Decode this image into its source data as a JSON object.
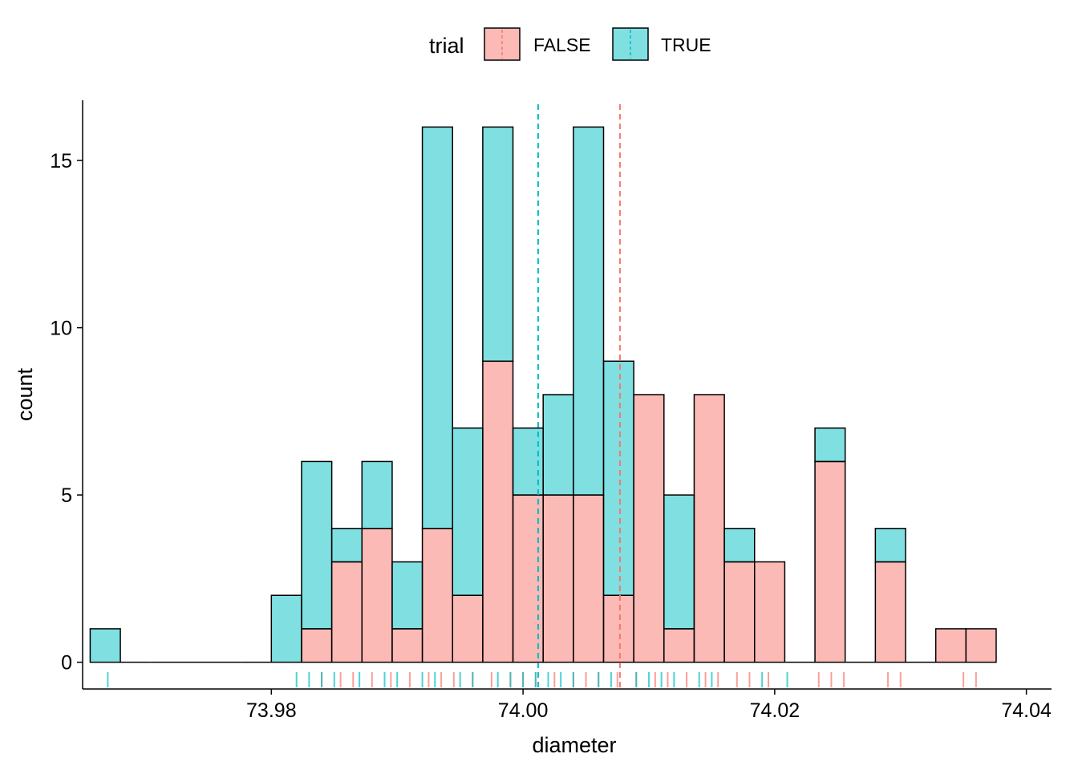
{
  "chart_data": {
    "type": "bar",
    "subtype": "overlaid-histogram-with-rug",
    "title": "",
    "xlabel": "diameter",
    "ylabel": "count",
    "xlim": [
      73.965,
      74.042
    ],
    "ylim": [
      -0.8,
      16.8
    ],
    "x_ticks": [
      73.98,
      74.0,
      74.02,
      74.04
    ],
    "x_tick_labels": [
      "73.98",
      "74.00",
      "74.02",
      "74.04"
    ],
    "y_ticks": [
      0,
      5,
      10,
      15
    ],
    "y_tick_labels": [
      "0",
      "5",
      "10",
      "15"
    ],
    "grid": false,
    "legend": {
      "title": "trial",
      "position": "top"
    },
    "bin_width": 0.0024,
    "bin_centers": [
      73.9668,
      73.9692,
      73.9716,
      73.974,
      73.9764,
      73.9788,
      73.9812,
      73.9836,
      73.986,
      73.9884,
      73.9908,
      73.9932,
      73.9956,
      73.998,
      74.0004,
      74.0028,
      74.0052,
      74.0076,
      74.01,
      74.0124,
      74.0148,
      74.0172,
      74.0196,
      74.022,
      74.0244,
      74.0268,
      74.0292,
      74.0316,
      74.034,
      74.0364
    ],
    "series": [
      {
        "name": "FALSE",
        "color": "#F8766D",
        "values": [
          0,
          0,
          0,
          0,
          0,
          0,
          0,
          1,
          3,
          4,
          1,
          4,
          2,
          9,
          5,
          5,
          5,
          2,
          8,
          1,
          8,
          3,
          3,
          0,
          6,
          0,
          3,
          0,
          1,
          1
        ],
        "mean": 74.0077,
        "rug": [
          73.984,
          73.9855,
          73.9865,
          73.988,
          73.9895,
          73.991,
          73.9925,
          73.9935,
          73.9945,
          73.996,
          73.9975,
          73.999,
          74.0,
          74.001,
          74.0025,
          74.004,
          74.005,
          74.006,
          74.0075,
          74.009,
          74.0105,
          74.0115,
          74.013,
          74.0145,
          74.0155,
          74.017,
          74.018,
          74.0195,
          74.0235,
          74.0245,
          74.0255,
          74.029,
          74.03,
          74.035,
          74.036
        ]
      },
      {
        "name": "TRUE",
        "color": "#00BFC4",
        "values": [
          1,
          0,
          0,
          0,
          0,
          0,
          2,
          5,
          1,
          2,
          2,
          12,
          5,
          7,
          2,
          3,
          11,
          7,
          0,
          4,
          0,
          1,
          0,
          0,
          1,
          0,
          1,
          0,
          0,
          0
        ],
        "mean": 74.0012,
        "rug": [
          73.967,
          73.982,
          73.983,
          73.984,
          73.985,
          73.987,
          73.989,
          73.99,
          73.992,
          73.993,
          73.995,
          73.996,
          73.998,
          73.999,
          74.0,
          74.001,
          74.002,
          74.003,
          74.004,
          74.006,
          74.007,
          74.009,
          74.01,
          74.011,
          74.012,
          74.014,
          74.015,
          74.019,
          74.021
        ]
      }
    ]
  }
}
